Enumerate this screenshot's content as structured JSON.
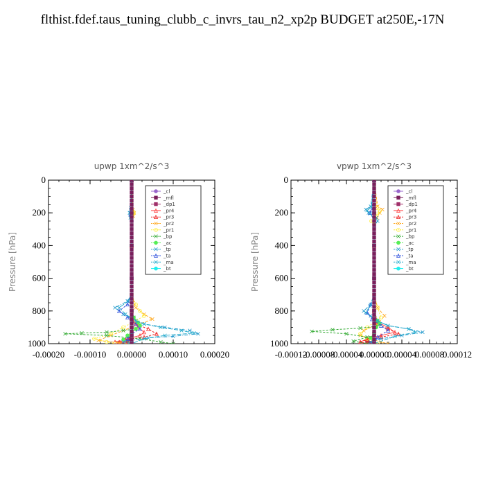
{
  "title": "flthist.fdef.taus_tuning_clubb_c_invrs_tau_n2_xp2p  BUDGET at250E,-17N",
  "colors": {
    "_cl": "#9966cc",
    "_mfl": "#7a1f5c",
    "_dp1": "#a0306a",
    "_pr4": "#ff4444",
    "_pr3": "#ee2222",
    "_pr2": "#ffaa22",
    "_pr1": "#ffee33",
    "_bp": "#33aa33",
    "_ac": "#55ee55",
    "_tp": "#2299cc",
    "_ta": "#3355dd",
    "_ma": "#22aacc",
    "_bt": "#22eeee"
  },
  "chart_data": [
    {
      "type": "line",
      "title": "upwp   1xm^2/s^3",
      "ylabel": "Pressure [hPa]",
      "xlim": [
        -0.0002,
        0.0002
      ],
      "ylim": [
        1000,
        0
      ],
      "xticks": [
        "-0.00020",
        "-0.00010",
        "0.00000",
        "0.00010",
        "0.00020"
      ],
      "xtick_values": [
        -0.0002,
        -0.0001,
        0.0,
        0.0001,
        0.0002
      ],
      "yticks": [
        "0",
        "200",
        "400",
        "600",
        "800",
        "1000"
      ],
      "ytick_values": [
        0,
        200,
        400,
        600,
        800,
        1000
      ],
      "legend": [
        "_cl",
        "_mfl",
        "_dp1",
        "_pr4",
        "_pr3",
        "_pr2",
        "_pr1",
        "_bp",
        "_ac",
        "_tp",
        "_ta",
        "_ma",
        "_bt"
      ],
      "legend_position": "top-right",
      "series": [
        {
          "name": "_cl",
          "x": [
            0,
            0,
            0,
            0,
            0,
            0
          ],
          "y": [
            0,
            200,
            400,
            600,
            800,
            1000
          ]
        },
        {
          "name": "_mfl",
          "x": [
            0,
            0,
            0,
            0,
            0,
            0
          ],
          "y": [
            0,
            200,
            400,
            600,
            800,
            1000
          ]
        },
        {
          "name": "_dp1",
          "x": [
            0,
            0,
            0,
            0,
            0,
            0,
            0,
            0,
            0,
            -5e-06,
            -1e-05,
            -3e-05,
            0
          ],
          "y": [
            0,
            200,
            400,
            600,
            800,
            850,
            900,
            930,
            950,
            970,
            985,
            995,
            1000
          ]
        },
        {
          "name": "_pr4",
          "x": [
            0,
            0,
            0,
            0,
            5e-06,
            1.5e-05,
            3e-05,
            2e-05,
            -1e-05,
            -3e-05,
            0
          ],
          "y": [
            0,
            200,
            400,
            800,
            870,
            900,
            930,
            950,
            970,
            990,
            1000
          ]
        },
        {
          "name": "_pr3",
          "x": [
            0,
            0,
            0,
            0,
            1e-05,
            4e-05,
            6e-05,
            3e-05,
            -1.5e-05,
            -4e-05,
            -2e-05
          ],
          "y": [
            0,
            200,
            400,
            800,
            880,
            910,
            940,
            960,
            975,
            990,
            1000
          ]
        },
        {
          "name": "_pr2",
          "x": [
            0,
            3e-06,
            6e-06,
            4e-06,
            0,
            0,
            1e-05,
            3e-05,
            5e-05,
            2e-05,
            -2e-05,
            -5e-05,
            -8e-05,
            -3e-05,
            0
          ],
          "y": [
            0,
            180,
            200,
            220,
            240,
            700,
            780,
            820,
            850,
            880,
            920,
            950,
            980,
            995,
            1000
          ]
        },
        {
          "name": "_pr1",
          "x": [
            0,
            3e-06,
            5e-06,
            3e-06,
            0,
            0,
            1e-05,
            2e-05,
            3e-05,
            1e-05,
            -2e-05,
            -5e-05,
            -9e-05,
            -6e-05,
            -4e-05
          ],
          "y": [
            0,
            190,
            200,
            210,
            230,
            700,
            760,
            800,
            830,
            860,
            900,
            940,
            970,
            990,
            1000
          ]
        },
        {
          "name": "_bp",
          "x": [
            0,
            0,
            0,
            0,
            5e-06,
            1.5e-05,
            2e-05,
            1e-05,
            -2e-05,
            -6e-05,
            -0.00012,
            -0.00016,
            -6e-05,
            2e-05,
            7e-05,
            0.0001
          ],
          "y": [
            0,
            200,
            400,
            800,
            840,
            870,
            890,
            910,
            920,
            930,
            935,
            940,
            950,
            970,
            990,
            1000
          ]
        },
        {
          "name": "_ac",
          "x": [
            0,
            0,
            0,
            0,
            5e-06,
            1.5e-05,
            2e-05,
            1e-05,
            0,
            -1e-05,
            -2e-05,
            0
          ],
          "y": [
            0,
            200,
            400,
            800,
            840,
            870,
            890,
            910,
            930,
            950,
            975,
            1000
          ]
        },
        {
          "name": "_tp",
          "x": [
            0,
            -2e-06,
            -4e-06,
            -2e-06,
            0,
            0,
            -1e-05,
            -4e-05,
            -2e-05,
            1e-05,
            3e-05,
            8e-05,
            0.00014,
            0.00016,
            0.0001,
            4e-05,
            0,
            -2e-05,
            0
          ],
          "y": [
            0,
            180,
            200,
            220,
            240,
            700,
            740,
            780,
            820,
            860,
            880,
            900,
            920,
            940,
            955,
            965,
            980,
            990,
            1000
          ]
        },
        {
          "name": "_ta",
          "x": [
            0,
            -2e-06,
            -3e-06,
            0,
            0,
            -1e-05,
            -3e-05,
            -1e-05,
            1e-05,
            2e-05,
            0,
            -1e-05,
            0
          ],
          "y": [
            0,
            190,
            210,
            240,
            700,
            760,
            800,
            840,
            880,
            910,
            940,
            970,
            1000
          ]
        },
        {
          "name": "_ma",
          "x": [
            0,
            -2e-06,
            -5e-06,
            -3e-06,
            0,
            0,
            -8e-06,
            -3e-05,
            -1.5e-05,
            1e-05,
            3e-05,
            7e-05,
            0.00012,
            0.00015,
            8e-05,
            3e-05,
            0
          ],
          "y": [
            0,
            170,
            200,
            230,
            250,
            700,
            740,
            780,
            820,
            860,
            880,
            900,
            920,
            935,
            950,
            970,
            1000
          ]
        },
        {
          "name": "_bt",
          "x": [
            0,
            0,
            0,
            0,
            0,
            0
          ],
          "y": [
            0,
            200,
            400,
            600,
            800,
            1000
          ]
        }
      ]
    },
    {
      "type": "line",
      "title": "vpwp   1xm^2/s^3",
      "ylabel": "Pressure [hPa]",
      "xlim": [
        -0.00012,
        0.00012
      ],
      "ylim": [
        1000,
        0
      ],
      "xticks": [
        "-0.00012",
        "-0.00008",
        "-0.00004",
        "0.00000",
        "0.00004",
        "0.00008",
        "0.00012"
      ],
      "xtick_values": [
        -0.00012,
        -8e-05,
        -4e-05,
        0.0,
        4e-05,
        8e-05,
        0.00012
      ],
      "yticks": [
        "0",
        "200",
        "400",
        "600",
        "800",
        "1000"
      ],
      "ytick_values": [
        0,
        200,
        400,
        600,
        800,
        1000
      ],
      "legend": [
        "_cl",
        "_mfl",
        "_dp1",
        "_pr4",
        "_pr3",
        "_pr2",
        "_pr1",
        "_bp",
        "_ac",
        "_tp",
        "_ta",
        "_ma",
        "_bt"
      ],
      "legend_position": "top-right",
      "series": [
        {
          "name": "_cl",
          "x": [
            0,
            0,
            0,
            0,
            0,
            0
          ],
          "y": [
            0,
            200,
            400,
            600,
            800,
            1000
          ]
        },
        {
          "name": "_mfl",
          "x": [
            0,
            0,
            0,
            0,
            0,
            0
          ],
          "y": [
            0,
            200,
            400,
            600,
            800,
            1000
          ]
        },
        {
          "name": "_dp1",
          "x": [
            0,
            0,
            0,
            0,
            0,
            0,
            0,
            -5e-06,
            -1e-05,
            -5e-06,
            0
          ],
          "y": [
            0,
            200,
            400,
            600,
            800,
            900,
            940,
            965,
            985,
            995,
            1000
          ]
        },
        {
          "name": "_pr4",
          "x": [
            0,
            0,
            0,
            0,
            5e-06,
            2e-05,
            3e-05,
            1e-05,
            -1e-05,
            -2e-05,
            -1e-05
          ],
          "y": [
            0,
            200,
            400,
            800,
            870,
            900,
            930,
            950,
            970,
            990,
            1000
          ]
        },
        {
          "name": "_pr3",
          "x": [
            0,
            0,
            0,
            0,
            5e-06,
            2e-05,
            3.5e-05,
            1e-05,
            -1e-05,
            -2e-05,
            -1e-05
          ],
          "y": [
            0,
            200,
            400,
            800,
            880,
            910,
            940,
            960,
            975,
            990,
            1000
          ]
        },
        {
          "name": "_pr2",
          "x": [
            0,
            5e-06,
            1.2e-05,
            8e-06,
            4e-06,
            0,
            0,
            5e-06,
            1.5e-05,
            5e-06,
            -1.5e-05,
            -2e-05,
            -5e-06,
            1e-05,
            2e-05
          ],
          "y": [
            0,
            160,
            180,
            200,
            230,
            260,
            700,
            780,
            830,
            880,
            920,
            950,
            970,
            990,
            1000
          ]
        },
        {
          "name": "_pr1",
          "x": [
            0,
            4e-06,
            8e-06,
            4e-06,
            -4e-06,
            0,
            0,
            5e-06,
            1e-05,
            -1e-05,
            -2e-05,
            -1e-05,
            5e-06
          ],
          "y": [
            0,
            170,
            190,
            210,
            250,
            270,
            700,
            780,
            840,
            900,
            940,
            970,
            1000
          ]
        },
        {
          "name": "_bp",
          "x": [
            0,
            0,
            0,
            0,
            5e-06,
            8e-06,
            2e-06,
            -2e-05,
            -6e-05,
            -9e-05,
            -4e-05,
            -1e-05,
            -3e-05,
            -1e-05
          ],
          "y": [
            0,
            200,
            400,
            800,
            860,
            880,
            895,
            905,
            915,
            925,
            940,
            960,
            985,
            1000
          ]
        },
        {
          "name": "_ac",
          "x": [
            0,
            0,
            0,
            0,
            5e-06,
            8e-06,
            3e-06,
            0,
            -5e-06,
            0
          ],
          "y": [
            0,
            200,
            400,
            800,
            860,
            880,
            900,
            930,
            965,
            1000
          ]
        },
        {
          "name": "_tp",
          "x": [
            0,
            -5e-06,
            -1.2e-05,
            -8e-06,
            3e-06,
            5e-06,
            0,
            0,
            -5e-06,
            -1.5e-05,
            -5e-06,
            5e-06,
            2e-05,
            5e-05,
            7e-05,
            4e-05,
            1e-05,
            -5e-06,
            0
          ],
          "y": [
            0,
            160,
            180,
            200,
            230,
            250,
            280,
            700,
            760,
            800,
            830,
            860,
            890,
            910,
            930,
            950,
            970,
            990,
            1000
          ]
        },
        {
          "name": "_ta",
          "x": [
            0,
            -3e-06,
            -6e-06,
            0,
            0,
            -5e-06,
            -1e-05,
            -3e-06,
            1e-05,
            2e-05,
            5e-06,
            0
          ],
          "y": [
            0,
            180,
            200,
            240,
            700,
            760,
            810,
            850,
            890,
            920,
            960,
            1000
          ]
        },
        {
          "name": "_ma",
          "x": [
            0,
            -4e-06,
            -1e-05,
            -6e-06,
            0,
            0,
            -6e-06,
            -1.2e-05,
            0,
            2e-05,
            5e-05,
            6e-05,
            3e-05,
            0
          ],
          "y": [
            0,
            165,
            185,
            205,
            240,
            700,
            770,
            810,
            850,
            890,
            910,
            930,
            955,
            1000
          ]
        },
        {
          "name": "_bt",
          "x": [
            0,
            0,
            0,
            0,
            0,
            0
          ],
          "y": [
            0,
            200,
            400,
            600,
            800,
            1000
          ]
        }
      ]
    }
  ]
}
